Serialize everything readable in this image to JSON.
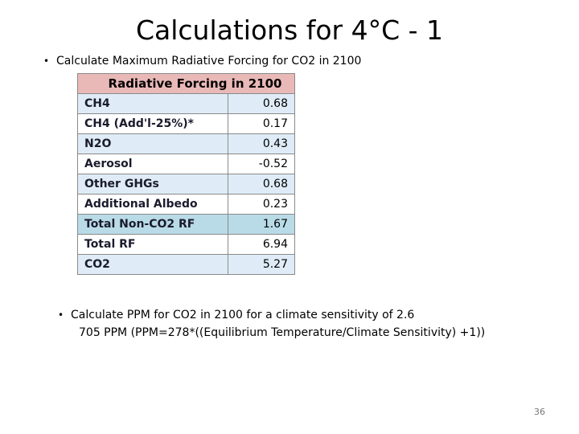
{
  "slide": {
    "title": "Calculations for 4°C -  1",
    "bullet_1": "Calculate Maximum Radiative Forcing for CO2 in 2100",
    "bullet_2": "Calculate PPM for CO2 in 2100 for a climate sensitivity of 2.6",
    "result": "705 PPM (PPM=278*((Equilibrium Temperature/Climate Sensitivity) +1))",
    "page_number": "36",
    "bullet_glyph": "•"
  },
  "table": {
    "header": "Radiative Forcing in 2100",
    "rows": [
      {
        "name": "CH4",
        "value": "0.68"
      },
      {
        "name": "CH4  (Add'l-25%)*",
        "value": "0.17"
      },
      {
        "name": "N2O",
        "value": "0.43"
      },
      {
        "name": "Aerosol",
        "value": "-0.52"
      },
      {
        "name": "Other GHGs",
        "value": "0.68"
      },
      {
        "name": "Additional Albedo",
        "value": "0.23"
      },
      {
        "name": "Total Non-CO2 RF",
        "value": "1.67"
      },
      {
        "name": "Total  RF",
        "value": "6.94"
      },
      {
        "name": "CO2",
        "value": "5.27"
      }
    ]
  },
  "colors": {
    "header_fill": "#e9b9b7",
    "alt_row_fill": "#dfecf7",
    "total_row_fill": "#b9dbe8"
  }
}
